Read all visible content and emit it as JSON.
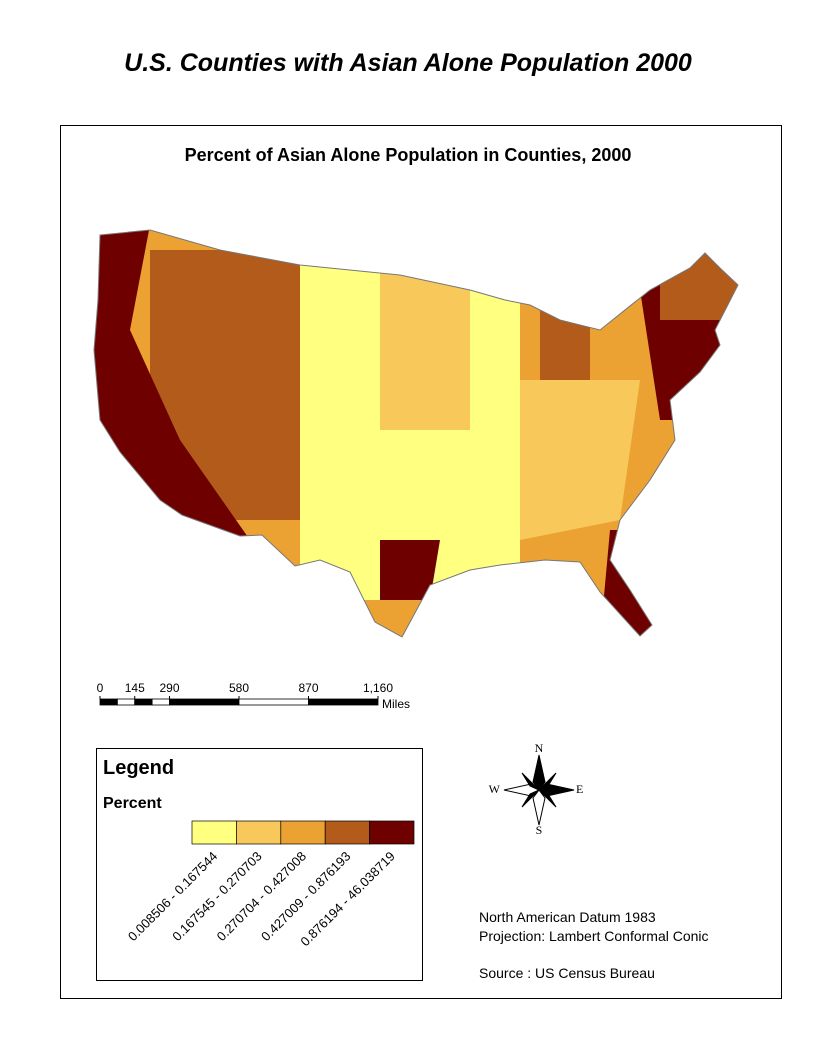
{
  "title": "U.S. Counties with Asian Alone Population 2000",
  "map": {
    "title": "Percent of Asian Alone Population in Counties, 2000"
  },
  "scale_bar": {
    "ticks": [
      0,
      145,
      290,
      580,
      870,
      {
        "value": 1160,
        "label": "1,160"
      }
    ],
    "unit": "Miles"
  },
  "legend": {
    "title": "Legend",
    "field": "Percent",
    "classes": [
      {
        "label": "0.008506 - 0.167544",
        "color": "#ffff80"
      },
      {
        "label": "0.167545 - 0.270703",
        "color": "#f8c95a"
      },
      {
        "label": "0.270704 - 0.427008",
        "color": "#eba233"
      },
      {
        "label": "0.427009 - 0.876193",
        "color": "#b35b1b"
      },
      {
        "label": "0.876194 - 46.038719",
        "color": "#6e0000"
      }
    ]
  },
  "compass": {
    "n": "N",
    "e": "E",
    "s": "S",
    "w": "W"
  },
  "notes": [
    "North American Datum 1983",
    "Projection: Lambert Conformal Conic",
    "Source : US Census Bureau"
  ]
}
